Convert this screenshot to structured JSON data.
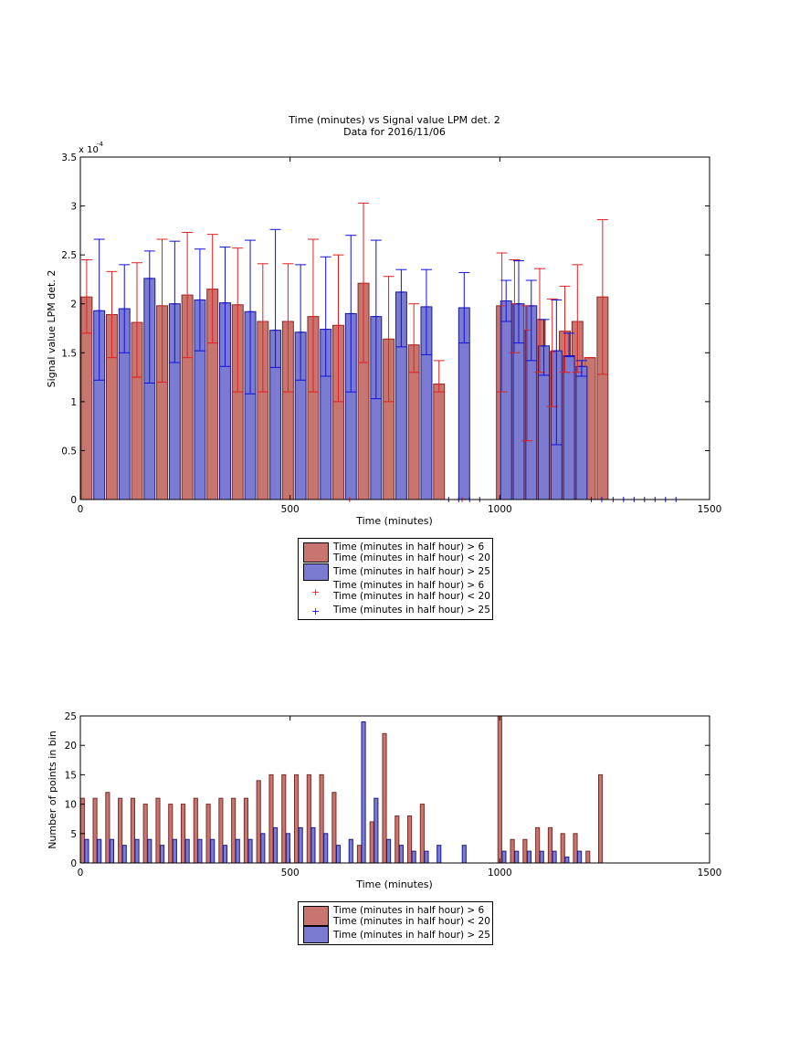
{
  "colors": {
    "red_fill": "#c87570",
    "red_edge": "#7a2d28",
    "blue_fill": "#7b7bd2",
    "blue_edge": "#1a1a8a",
    "red_line": "#e22020",
    "blue_line": "#1010d8"
  },
  "chart_data": [
    {
      "type": "bar",
      "title": "Time (minutes) vs Signal value LPM det. 2",
      "subtitle": "Data for 2016/11/06",
      "xlabel": "Time (minutes)",
      "ylabel": "Signal value LPM det. 2",
      "y_exponent_label": "x 10",
      "y_exponent_power": "-4",
      "xlim": [
        0,
        1500
      ],
      "ylim": [
        0,
        3.5
      ],
      "y_scale_factor": 0.0001,
      "x_ticks": [
        0,
        500,
        1000,
        1500
      ],
      "x_tick_labels": [
        "0",
        "500",
        "1000",
        "1500"
      ],
      "y_ticks": [
        0,
        0.5,
        1,
        1.5,
        2,
        2.5,
        3,
        3.5
      ],
      "y_tick_labels": [
        "0",
        "0.5",
        "1",
        "1.5",
        "2",
        "2.5",
        "3",
        "3.5"
      ],
      "grid": false,
      "legend_position": "below",
      "legend": [
        "Time (minutes in half hour) > 6\nTime (minutes in half hour) < 20",
        "Time (minutes in half hour) > 25",
        "Time (minutes in half hour) > 6\nTime (minutes in half hour) < 20",
        "Time (minutes in half hour) > 25"
      ],
      "bar_width": 26,
      "series": [
        {
          "name": "Time (minutes in half hour) > 6 Time (minutes in half hour) < 20",
          "x": [
            15,
            75,
            135,
            195,
            255,
            315,
            375,
            435,
            495,
            555,
            615,
            675,
            735,
            795,
            855,
            1005,
            1035,
            1065,
            1095,
            1125,
            1155,
            1185,
            1215,
            1245
          ],
          "values": [
            2.07,
            1.89,
            1.81,
            1.98,
            2.09,
            2.15,
            1.99,
            1.82,
            1.82,
            1.87,
            1.78,
            2.21,
            1.64,
            1.58,
            1.18,
            1.98,
            2.0,
            1.73,
            1.84,
            1.51,
            1.72,
            1.82,
            1.45,
            2.07
          ],
          "err_low": [
            1.7,
            1.45,
            1.25,
            1.2,
            1.45,
            1.6,
            1.1,
            1.1,
            1.1,
            1.1,
            1.0,
            1.4,
            1.0,
            1.3,
            1.1,
            1.1,
            1.5,
            0.6,
            1.3,
            0.95,
            1.3,
            1.3,
            1.45,
            1.28
          ],
          "err_high": [
            2.45,
            2.33,
            2.42,
            2.66,
            2.73,
            2.71,
            2.57,
            2.41,
            2.41,
            2.66,
            2.5,
            3.03,
            2.28,
            2.0,
            1.42,
            2.52,
            2.45,
            1.98,
            2.36,
            2.05,
            2.18,
            2.4,
            1.45,
            2.86
          ]
        },
        {
          "name": "Time (minutes in half hour) > 25",
          "x": [
            45,
            105,
            165,
            225,
            285,
            345,
            405,
            465,
            525,
            585,
            645,
            705,
            765,
            825,
            915,
            1015,
            1045,
            1075,
            1105,
            1135,
            1165,
            1195
          ],
          "values": [
            1.93,
            1.95,
            2.26,
            2.0,
            2.04,
            2.01,
            1.92,
            1.73,
            1.71,
            1.74,
            1.9,
            1.87,
            2.12,
            1.97,
            1.96,
            2.03,
            2.0,
            1.98,
            1.57,
            1.52,
            1.47,
            1.36
          ],
          "err_low": [
            1.22,
            1.5,
            1.19,
            1.4,
            1.52,
            1.36,
            1.08,
            1.35,
            1.22,
            1.26,
            1.1,
            1.03,
            1.56,
            1.48,
            1.6,
            1.82,
            1.6,
            1.42,
            1.27,
            0.56,
            1.46,
            1.26
          ],
          "err_high": [
            2.66,
            2.4,
            2.54,
            2.64,
            2.56,
            2.58,
            2.65,
            2.76,
            2.4,
            2.48,
            2.7,
            2.65,
            2.35,
            2.35,
            2.32,
            2.24,
            2.44,
            2.24,
            1.84,
            2.04,
            1.7,
            1.42
          ]
        }
      ],
      "empty_markers": {
        "red_x": [
          642,
          910
        ],
        "blue_x": [
          878,
          902,
          928,
          952,
          1218,
          1243,
          1270,
          1295,
          1320,
          1345,
          1370,
          1395,
          1420
        ]
      }
    },
    {
      "type": "bar",
      "xlabel": "Time (minutes)",
      "ylabel": "Number of points in bin",
      "xlim": [
        0,
        1500
      ],
      "ylim": [
        0,
        25
      ],
      "x_ticks": [
        0,
        500,
        1000,
        1500
      ],
      "x_tick_labels": [
        "0",
        "500",
        "1000",
        "1500"
      ],
      "y_ticks": [
        0,
        5,
        10,
        15,
        20,
        25
      ],
      "y_tick_labels": [
        "0",
        "5",
        "10",
        "15",
        "20",
        "25"
      ],
      "grid": false,
      "legend_position": "below",
      "legend": [
        "Time (minutes in half hour) > 6\nTime (minutes in half hour) < 20",
        "Time (minutes in half hour) > 25"
      ],
      "bar_width": 9,
      "series": [
        {
          "name": "Time (minutes in half hour) > 6 Time (minutes in half hour) < 20",
          "x": [
            5,
            35,
            65,
            95,
            125,
            155,
            185,
            215,
            245,
            275,
            305,
            335,
            365,
            395,
            425,
            455,
            485,
            515,
            545,
            575,
            605,
            665,
            695,
            725,
            755,
            785,
            815,
            1000,
            1030,
            1060,
            1090,
            1120,
            1150,
            1180,
            1210,
            1240
          ],
          "values": [
            11,
            11,
            12,
            11,
            11,
            10,
            11,
            10,
            10,
            11,
            10,
            11,
            11,
            11,
            14,
            15,
            15,
            15,
            15,
            15,
            12,
            3,
            7,
            22,
            8,
            8,
            10,
            25,
            4,
            4,
            6,
            6,
            5,
            5,
            2,
            15
          ]
        },
        {
          "name": "Time (minutes in half hour) > 25",
          "x": [
            15,
            45,
            75,
            105,
            135,
            165,
            195,
            225,
            255,
            285,
            315,
            345,
            375,
            405,
            435,
            465,
            495,
            525,
            555,
            585,
            615,
            645,
            675,
            705,
            735,
            765,
            795,
            825,
            855,
            915,
            1010,
            1040,
            1070,
            1100,
            1130,
            1160,
            1190
          ],
          "values": [
            4,
            4,
            4,
            3,
            4,
            4,
            3,
            4,
            4,
            4,
            4,
            3,
            4,
            4,
            5,
            6,
            5,
            6,
            6,
            5,
            3,
            4,
            24,
            11,
            4,
            3,
            2,
            2,
            3,
            3,
            2,
            2,
            2,
            2,
            2,
            1,
            2
          ]
        }
      ]
    }
  ]
}
